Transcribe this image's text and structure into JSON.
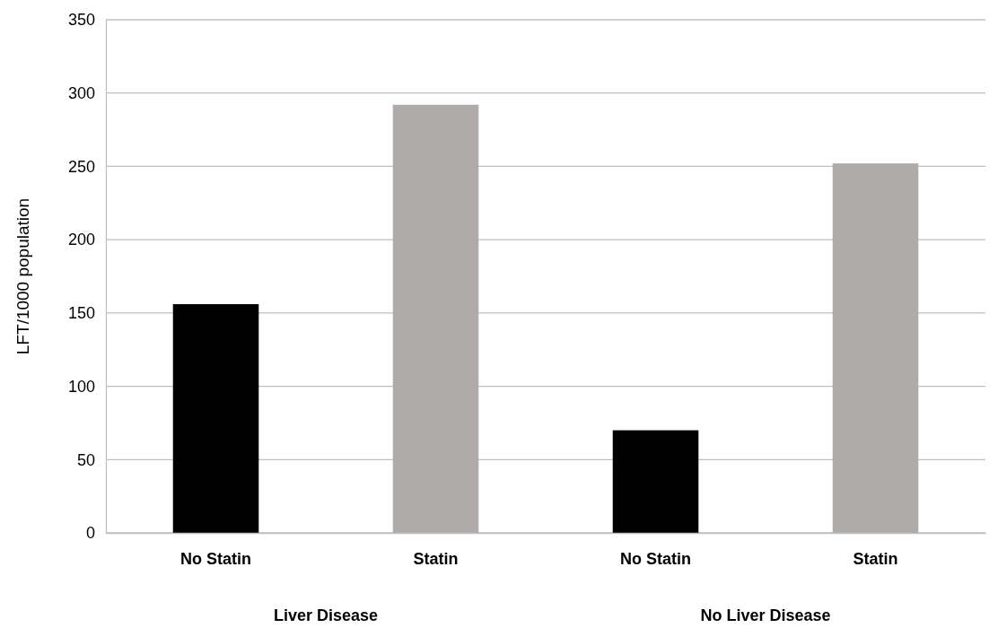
{
  "chart_data": {
    "type": "bar",
    "categories": [
      "No Statin",
      "Statin",
      "No Statin",
      "Statin"
    ],
    "values": [
      156,
      292,
      70,
      252
    ],
    "colors": [
      "#000000",
      "#afabab",
      "#000000",
      "#afabab"
    ],
    "ylabel": "LFT/1000 population",
    "ylim": [
      0,
      350
    ],
    "yticks": [
      0,
      50,
      100,
      150,
      200,
      250,
      300,
      350
    ],
    "grid": "y",
    "annotations": [
      "Liver Disease",
      "No Liver Disease"
    ]
  }
}
